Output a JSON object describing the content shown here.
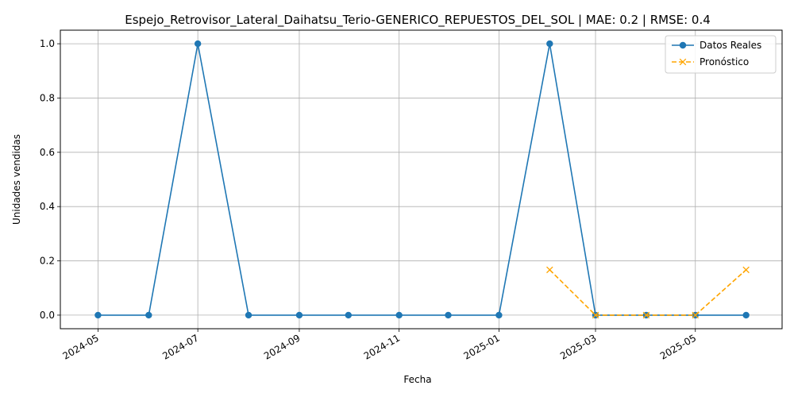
{
  "chart_data": {
    "type": "line",
    "title": "Espejo_Retrovisor_Lateral_Daihatsu_Terio-GENERICO_REPUESTOS_DEL_SOL | MAE: 0.2 | RMSE: 0.4",
    "xlabel": "Fecha",
    "ylabel": "Unidades vendidas",
    "grid": true,
    "legend_position": "top-right",
    "ylim": [
      -0.05,
      1.05
    ],
    "xlim": [
      "2024-04-08",
      "2025-06-23"
    ],
    "x_ticks": [
      "2024-05",
      "2024-07",
      "2024-09",
      "2024-11",
      "2025-01",
      "2025-03",
      "2025-05"
    ],
    "y_ticks": [
      "0.0",
      "0.2",
      "0.4",
      "0.6",
      "0.8",
      "1.0"
    ],
    "y_tick_values": [
      0,
      0.2,
      0.4,
      0.6,
      0.8,
      1.0
    ],
    "series": [
      {
        "name": "Datos Reales",
        "color": "#1f77b4",
        "marker": "circle",
        "linestyle": "solid",
        "points": [
          {
            "x": "2024-05-01",
            "y": 0
          },
          {
            "x": "2024-06-01",
            "y": 0
          },
          {
            "x": "2024-07-01",
            "y": 1
          },
          {
            "x": "2024-08-01",
            "y": 0
          },
          {
            "x": "2024-09-01",
            "y": 0
          },
          {
            "x": "2024-10-01",
            "y": 0
          },
          {
            "x": "2024-11-01",
            "y": 0
          },
          {
            "x": "2024-12-01",
            "y": 0
          },
          {
            "x": "2025-01-01",
            "y": 0
          },
          {
            "x": "2025-02-01",
            "y": 1
          },
          {
            "x": "2025-03-01",
            "y": 0
          },
          {
            "x": "2025-04-01",
            "y": 0
          },
          {
            "x": "2025-05-01",
            "y": 0
          },
          {
            "x": "2025-06-01",
            "y": 0
          }
        ]
      },
      {
        "name": "Pronóstico",
        "color": "#ffa500",
        "marker": "x",
        "linestyle": "dashed",
        "points": [
          {
            "x": "2025-02-01",
            "y": 0.167
          },
          {
            "x": "2025-03-01",
            "y": 0
          },
          {
            "x": "2025-04-01",
            "y": 0
          },
          {
            "x": "2025-05-01",
            "y": 0
          },
          {
            "x": "2025-06-01",
            "y": 0.167
          }
        ]
      }
    ]
  }
}
